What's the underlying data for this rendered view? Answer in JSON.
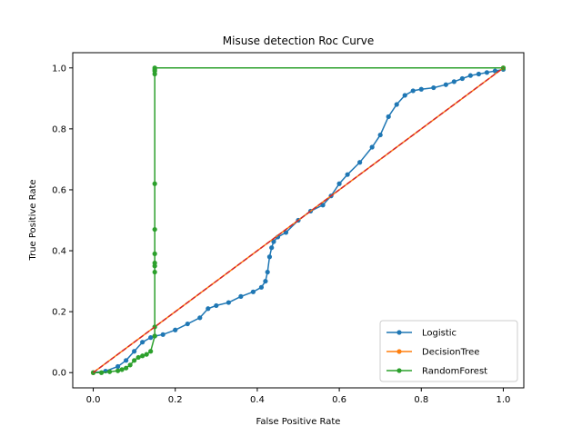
{
  "chart_data": {
    "type": "line",
    "title": "Misuse detection Roc Curve",
    "xlabel": "False Positive Rate",
    "ylabel": "True Positive Rate",
    "xlim": [
      -0.05,
      1.05
    ],
    "ylim": [
      -0.05,
      1.05
    ],
    "xticks": [
      "0.0",
      "0.2",
      "0.4",
      "0.6",
      "0.8",
      "1.0"
    ],
    "yticks": [
      "0.0",
      "0.2",
      "0.4",
      "0.6",
      "0.8",
      "1.0"
    ],
    "grid": false,
    "legend_position": "lower-right",
    "series": [
      {
        "name": "Logistic",
        "color": "#1f77b4",
        "marker": "circle",
        "x": [
          0,
          0.03,
          0.06,
          0.08,
          0.1,
          0.12,
          0.14,
          0.15,
          0.17,
          0.2,
          0.23,
          0.26,
          0.28,
          0.3,
          0.33,
          0.36,
          0.39,
          0.41,
          0.42,
          0.425,
          0.43,
          0.435,
          0.44,
          0.45,
          0.47,
          0.5,
          0.53,
          0.56,
          0.58,
          0.6,
          0.62,
          0.65,
          0.68,
          0.7,
          0.72,
          0.74,
          0.76,
          0.78,
          0.8,
          0.83,
          0.86,
          0.88,
          0.9,
          0.92,
          0.94,
          0.96,
          0.98,
          1.0
        ],
        "y": [
          0,
          0.005,
          0.02,
          0.04,
          0.07,
          0.1,
          0.115,
          0.12,
          0.125,
          0.14,
          0.16,
          0.18,
          0.21,
          0.22,
          0.23,
          0.25,
          0.265,
          0.28,
          0.3,
          0.33,
          0.38,
          0.41,
          0.43,
          0.445,
          0.46,
          0.5,
          0.53,
          0.55,
          0.58,
          0.62,
          0.65,
          0.69,
          0.74,
          0.78,
          0.84,
          0.88,
          0.91,
          0.925,
          0.93,
          0.935,
          0.945,
          0.955,
          0.965,
          0.975,
          0.98,
          0.985,
          0.99,
          0.995
        ]
      },
      {
        "name": "DecisionTree",
        "color": "#ff7f0e",
        "marker": "circle",
        "x": [
          0,
          1.0
        ],
        "y": [
          0,
          1.0
        ]
      },
      {
        "name": "RandomForest",
        "color": "#2ca02c",
        "marker": "circle",
        "x": [
          0,
          0.02,
          0.04,
          0.06,
          0.07,
          0.08,
          0.09,
          0.1,
          0.11,
          0.12,
          0.13,
          0.14,
          0.15,
          0.15,
          0.15,
          0.15,
          0.15,
          0.15,
          0.15,
          0.15,
          0.15,
          0.15,
          0.15,
          0.15,
          1.0
        ],
        "y": [
          0,
          0.0,
          0.003,
          0.006,
          0.01,
          0.015,
          0.025,
          0.04,
          0.05,
          0.055,
          0.06,
          0.07,
          0.12,
          0.15,
          0.33,
          0.35,
          0.36,
          0.39,
          0.47,
          0.62,
          0.98,
          0.99,
          0.995,
          1.0,
          1.0
        ]
      }
    ],
    "reference_line": {
      "color": "#d62728",
      "style": "dashed",
      "x": [
        0,
        1.0
      ],
      "y": [
        0,
        1.0
      ]
    }
  }
}
